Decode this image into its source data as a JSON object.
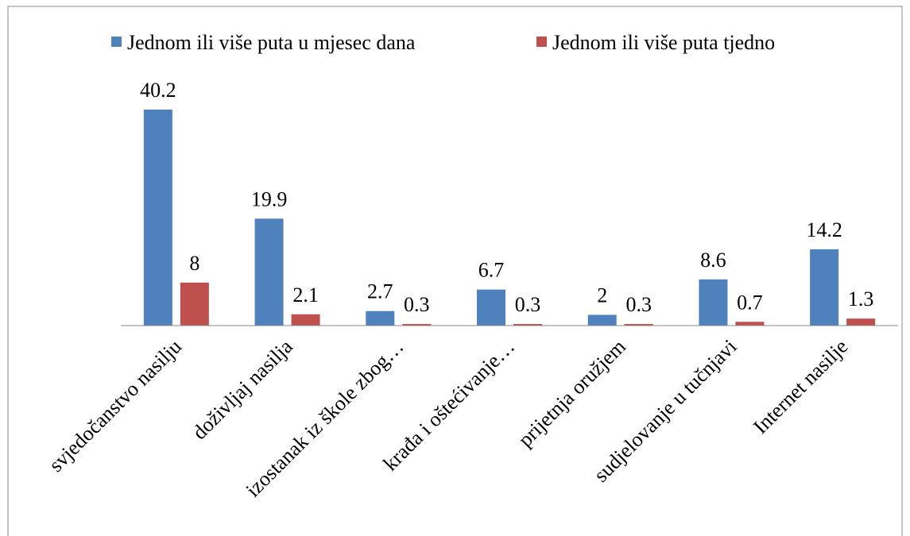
{
  "chart_data": {
    "type": "bar",
    "categories": [
      "svjedočanstvo nasilju",
      "doživljaj nasilja",
      "izostanak iz škole zbog…",
      "krađa i oštećivanje…",
      "prijetnja oružjem",
      "sudjelovanje u tučnjavi",
      "Internet nasilje"
    ],
    "series": [
      {
        "name": "Jednom ili više puta u mjesec dana",
        "color": "#4f81bd",
        "values": [
          40.2,
          19.9,
          2.7,
          6.7,
          2,
          8.6,
          14.2
        ]
      },
      {
        "name": "Jednom ili više puta tjedno",
        "color": "#c0504d",
        "values": [
          8,
          2.1,
          0.3,
          0.3,
          0.3,
          0.7,
          1.3
        ]
      }
    ],
    "legend": "top"
  }
}
